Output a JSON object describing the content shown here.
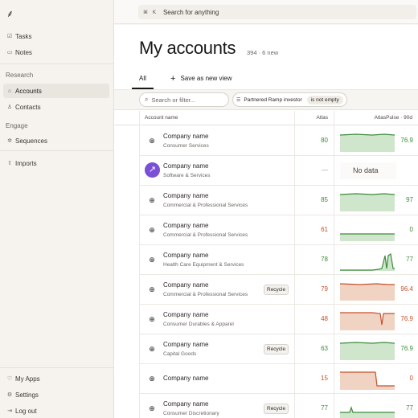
{
  "app": {
    "logo": "⸙"
  },
  "sidebar": {
    "top_items": [
      {
        "label": "Tasks",
        "icon": "checkbox-icon",
        "glyph": "☑"
      },
      {
        "label": "Notes",
        "icon": "note-icon",
        "glyph": "▭"
      }
    ],
    "section_research": "Research",
    "research_items": [
      {
        "label": "Accounts",
        "icon": "building-icon",
        "glyph": "⌂",
        "active": true
      },
      {
        "label": "Contacts",
        "icon": "people-icon",
        "glyph": "♙"
      }
    ],
    "section_engage": "Engage",
    "engage_items": [
      {
        "label": "Sequences",
        "icon": "sequence-icon",
        "glyph": "✲"
      }
    ],
    "imports": {
      "label": "Imports",
      "icon": "upload-icon",
      "glyph": "⇧"
    },
    "bottom_items": [
      {
        "label": "My Apps",
        "icon": "apps-icon",
        "glyph": "♡"
      },
      {
        "label": "Settings",
        "icon": "gear-icon",
        "glyph": "⚙"
      },
      {
        "label": "Log out",
        "icon": "logout-icon",
        "glyph": "⇥"
      }
    ]
  },
  "topbar": {
    "shortcut_cmd": "⌘",
    "shortcut_key": "K",
    "search_text": "Search for anything"
  },
  "page": {
    "title": "My accounts",
    "meta": "394 · 6 new"
  },
  "tabs": {
    "all": "All",
    "save_view": "Save as new view",
    "plus": "+"
  },
  "filters": {
    "search_placeholder": "Search or filter...",
    "chip_field": "Partnered Ramp investor",
    "chip_operator": "is not empty"
  },
  "table": {
    "col_name": "Account name",
    "col_atlas": "Atlas",
    "col_pulse": "AtlasPulse · 90d",
    "rows": [
      {
        "name": "Company name",
        "industry": "Consumer Services",
        "atlas": "80",
        "atlas_color": "green",
        "pulse": "76.9",
        "pulse_color": "green",
        "trend": "flat-high",
        "logo": "globe"
      },
      {
        "name": "Company name",
        "industry": "Software & Services",
        "atlas": "—",
        "atlas_color": "gray",
        "pulse": "No data",
        "pulse_color": "none",
        "trend": "none",
        "logo": "arrow"
      },
      {
        "name": "Company name",
        "industry": "Commercial & Professional Services",
        "atlas": "85",
        "atlas_color": "green",
        "pulse": "97",
        "pulse_color": "green",
        "trend": "flat-high",
        "logo": "globe"
      },
      {
        "name": "Company name",
        "industry": "Commercial & Professional Services",
        "atlas": "61",
        "atlas_color": "orange",
        "pulse": "0",
        "pulse_color": "green",
        "trend": "zero",
        "logo": "globe"
      },
      {
        "name": "Company name",
        "industry": "Health Care Equipment & Services",
        "atlas": "78",
        "atlas_color": "green",
        "pulse": "77",
        "pulse_color": "green",
        "trend": "spike-end",
        "logo": "globe"
      },
      {
        "name": "Company name",
        "industry": "Commercial & Professional Services",
        "atlas": "79",
        "atlas_color": "orange",
        "pulse": "96.4",
        "pulse_color": "orange",
        "trend": "orange-high",
        "logo": "globe",
        "recycle": "Recycle"
      },
      {
        "name": "Company name",
        "industry": "Consumer Durables & Apparel",
        "atlas": "48",
        "atlas_color": "orange",
        "pulse": "76.9",
        "pulse_color": "orange",
        "trend": "orange-dip",
        "logo": "globe"
      },
      {
        "name": "Company name",
        "industry": "Capital Goods",
        "atlas": "63",
        "atlas_color": "green",
        "pulse": "76.9",
        "pulse_color": "green",
        "trend": "flat-high",
        "logo": "globe",
        "recycle": "Recycle"
      },
      {
        "name": "Company name",
        "industry": "",
        "atlas": "15",
        "atlas_color": "orange",
        "pulse": "0",
        "pulse_color": "orange",
        "trend": "orange-drop",
        "logo": "globe"
      },
      {
        "name": "Company name",
        "industry": "Consumer Discretionary",
        "atlas": "77",
        "atlas_color": "green",
        "pulse": "77",
        "pulse_color": "green",
        "trend": "flat-bump",
        "logo": "globe",
        "recycle": "Recycle"
      }
    ]
  },
  "colors": {
    "green": "#3d8b3d",
    "orange": "#c4522a",
    "green_fill": "#cfe6cc",
    "orange_fill": "#f0d3c3",
    "logo_purple": "#7b4fd6"
  }
}
